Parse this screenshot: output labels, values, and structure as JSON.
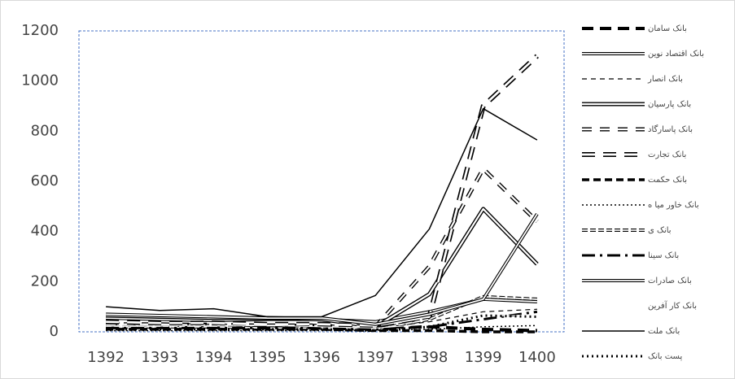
{
  "chart_data": {
    "type": "line",
    "categories": [
      "1392",
      "1393",
      "1394",
      "1395",
      "1396",
      "1397",
      "1398",
      "1399",
      "1400"
    ],
    "ylim": [
      0,
      1200
    ],
    "yticks": [
      0,
      200,
      400,
      600,
      800,
      1000,
      1200
    ],
    "series": [
      {
        "name": "بانک  سامان",
        "color": "#000000",
        "width": 4,
        "dash": "14 8",
        "double": false,
        "values": [
          30,
          30,
          30,
          25,
          25,
          20,
          20,
          10,
          5
        ]
      },
      {
        "name": "بانک اقتصاد نوین",
        "color": "#000000",
        "width": 4,
        "dash": "",
        "double": true,
        "values": [
          55,
          50,
          45,
          50,
          50,
          40,
          80,
          130,
          120
        ]
      },
      {
        "name": "بانک انصار",
        "color": "#000000",
        "width": 1.2,
        "dash": "6 5",
        "double": false,
        "values": [
          35,
          35,
          30,
          30,
          30,
          15,
          40,
          80,
          90
        ]
      },
      {
        "name": "بانک پارسیان",
        "color": "#000000",
        "width": 5,
        "dash": "",
        "double": true,
        "values": [
          65,
          60,
          55,
          55,
          50,
          20,
          150,
          490,
          270
        ]
      },
      {
        "name": "بانک پاسارگاد",
        "color": "#000000",
        "width": 5,
        "dash": "12 10",
        "double": true,
        "values": [
          30,
          30,
          25,
          25,
          25,
          20,
          260,
          650,
          440
        ]
      },
      {
        "name": "بانک تجارت",
        "color": "#000000",
        "width": 6,
        "dash": "16 10",
        "double": true,
        "values": [
          40,
          35,
          35,
          30,
          30,
          25,
          60,
          900,
          1100
        ]
      },
      {
        "name": "بانک حکمت",
        "color": "#000000",
        "width": 3.5,
        "dash": "9 5",
        "double": false,
        "values": [
          10,
          10,
          10,
          10,
          10,
          5,
          5,
          0,
          0
        ]
      },
      {
        "name": "بانک خاور میا ه",
        "color": "#000000",
        "width": 1.5,
        "dash": "2 3",
        "double": false,
        "values": [
          5,
          5,
          5,
          5,
          5,
          5,
          10,
          20,
          25
        ]
      },
      {
        "name": "بانک  ی",
        "color": "#000000",
        "width": 4,
        "dash": "7 3",
        "double": true,
        "values": [
          20,
          20,
          20,
          15,
          15,
          10,
          50,
          140,
          130
        ]
      },
      {
        "name": "بانک سینا",
        "color": "#000000",
        "width": 3,
        "dash": "16 6 3 6",
        "double": false,
        "values": [
          15,
          15,
          15,
          15,
          15,
          10,
          20,
          50,
          80
        ]
      },
      {
        "name": "بانک صادرات",
        "color": "#000000",
        "width": 4,
        "dash": "",
        "double": true,
        "values": [
          70,
          65,
          60,
          55,
          55,
          30,
          70,
          130,
          470
        ]
      },
      {
        "name": "بانک کار آفرین",
        "color": "#ffffff",
        "width": 1,
        "dash": "",
        "double": false,
        "values": [
          25,
          25,
          25,
          25,
          20,
          15,
          30,
          60,
          70
        ]
      },
      {
        "name": "بانک ملت",
        "color": "#000000",
        "width": 1.5,
        "dash": "",
        "double": false,
        "values": [
          100,
          85,
          92,
          60,
          60,
          145,
          410,
          890,
          765
        ]
      },
      {
        "name": "پست بانک",
        "color": "#000000",
        "width": 3,
        "dash": "2 4",
        "double": false,
        "values": [
          10,
          10,
          10,
          10,
          10,
          5,
          20,
          65,
          60
        ]
      }
    ]
  }
}
